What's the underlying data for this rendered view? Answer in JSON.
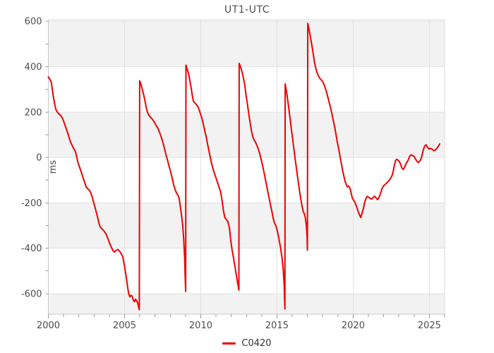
{
  "chart_data": {
    "type": "line",
    "title": "UT1-UTC",
    "ylabel": "ms",
    "xlim": [
      2000,
      2026
    ],
    "ylim": [
      -691,
      607
    ],
    "x_major_ticks": [
      2000,
      2005,
      2010,
      2015,
      2020,
      2025
    ],
    "x_minor_tick_step": 1,
    "y_label_ticks": [
      600,
      400,
      200,
      0,
      -200,
      -400,
      -600
    ],
    "y_minor_tick_step": 100,
    "grid": true,
    "split_bands_gray": [
      [
        600,
        400
      ],
      [
        200,
        0
      ],
      [
        -200,
        -400
      ],
      [
        -600,
        -691
      ]
    ],
    "legend": {
      "position": "bottom-center",
      "entries": [
        "C0420"
      ]
    },
    "colors": {
      "series": "#ee0000",
      "band": "#f2f2f2",
      "grid": "#e2e2e2",
      "axis": "#c8c8c8",
      "border": "#dcdcdc",
      "tick": "#999999",
      "label": "#4d4d4d",
      "title": "#4d4d4d",
      "legend_text": "#333333"
    },
    "series": [
      {
        "name": "C0420",
        "points": [
          [
            2000.0,
            355
          ],
          [
            2000.1,
            345
          ],
          [
            2000.2,
            330
          ],
          [
            2000.26,
            300
          ],
          [
            2000.34,
            264
          ],
          [
            2000.42,
            233
          ],
          [
            2000.49,
            212
          ],
          [
            2000.57,
            202
          ],
          [
            2000.68,
            193
          ],
          [
            2000.8,
            186
          ],
          [
            2000.93,
            172
          ],
          [
            2001.03,
            155
          ],
          [
            2001.14,
            134
          ],
          [
            2001.27,
            108
          ],
          [
            2001.39,
            82
          ],
          [
            2001.47,
            66
          ],
          [
            2001.54,
            56
          ],
          [
            2001.65,
            41
          ],
          [
            2001.77,
            27
          ],
          [
            2001.86,
            3
          ],
          [
            2001.94,
            -22
          ],
          [
            2002.1,
            -53
          ],
          [
            2002.25,
            -84
          ],
          [
            2002.41,
            -115
          ],
          [
            2002.49,
            -131
          ],
          [
            2002.56,
            -136
          ],
          [
            2002.72,
            -147
          ],
          [
            2002.79,
            -157
          ],
          [
            2002.87,
            -172
          ],
          [
            2003.02,
            -209
          ],
          [
            2003.18,
            -250
          ],
          [
            2003.33,
            -292
          ],
          [
            2003.41,
            -307
          ],
          [
            2003.49,
            -313
          ],
          [
            2003.64,
            -323
          ],
          [
            2003.8,
            -339
          ],
          [
            2003.95,
            -365
          ],
          [
            2004.1,
            -391
          ],
          [
            2004.25,
            -412
          ],
          [
            2004.34,
            -417
          ],
          [
            2004.41,
            -411
          ],
          [
            2004.57,
            -406
          ],
          [
            2004.72,
            -417
          ],
          [
            2004.88,
            -437
          ],
          [
            2005.0,
            -480
          ],
          [
            2005.12,
            -532
          ],
          [
            2005.19,
            -567
          ],
          [
            2005.27,
            -600
          ],
          [
            2005.35,
            -615
          ],
          [
            2005.43,
            -608
          ],
          [
            2005.5,
            -612
          ],
          [
            2005.58,
            -630
          ],
          [
            2005.65,
            -636
          ],
          [
            2005.72,
            -625
          ],
          [
            2005.79,
            -631
          ],
          [
            2005.86,
            -642
          ],
          [
            2005.93,
            -662
          ],
          [
            2005.97,
            -671
          ],
          [
            2005.99,
            338
          ],
          [
            2006.08,
            322
          ],
          [
            2006.17,
            300
          ],
          [
            2006.25,
            278
          ],
          [
            2006.33,
            253
          ],
          [
            2006.42,
            222
          ],
          [
            2006.5,
            200
          ],
          [
            2006.6,
            186
          ],
          [
            2006.7,
            178
          ],
          [
            2006.8,
            170
          ],
          [
            2006.9,
            162
          ],
          [
            2007.0,
            150
          ],
          [
            2007.1,
            138
          ],
          [
            2007.2,
            127
          ],
          [
            2007.3,
            110
          ],
          [
            2007.42,
            88
          ],
          [
            2007.52,
            65
          ],
          [
            2007.62,
            40
          ],
          [
            2007.72,
            12
          ],
          [
            2007.82,
            -12
          ],
          [
            2007.92,
            -38
          ],
          [
            2008.02,
            -62
          ],
          [
            2008.12,
            -90
          ],
          [
            2008.22,
            -120
          ],
          [
            2008.32,
            -142
          ],
          [
            2008.42,
            -158
          ],
          [
            2008.5,
            -166
          ],
          [
            2008.58,
            -180
          ],
          [
            2008.66,
            -215
          ],
          [
            2008.73,
            -250
          ],
          [
            2008.81,
            -297
          ],
          [
            2008.88,
            -360
          ],
          [
            2008.94,
            -440
          ],
          [
            2008.98,
            -530
          ],
          [
            2009.01,
            -591
          ],
          [
            2009.03,
            407
          ],
          [
            2009.13,
            385
          ],
          [
            2009.21,
            368
          ],
          [
            2009.29,
            337
          ],
          [
            2009.37,
            306
          ],
          [
            2009.44,
            274
          ],
          [
            2009.52,
            248
          ],
          [
            2009.6,
            241
          ],
          [
            2009.72,
            233
          ],
          [
            2009.83,
            222
          ],
          [
            2009.91,
            207
          ],
          [
            2009.99,
            191
          ],
          [
            2010.06,
            175
          ],
          [
            2010.14,
            155
          ],
          [
            2010.21,
            134
          ],
          [
            2010.29,
            110
          ],
          [
            2010.37,
            87
          ],
          [
            2010.44,
            61
          ],
          [
            2010.52,
            35
          ],
          [
            2010.6,
            9
          ],
          [
            2010.68,
            -17
          ],
          [
            2010.75,
            -37
          ],
          [
            2010.85,
            -60
          ],
          [
            2010.95,
            -80
          ],
          [
            2011.1,
            -110
          ],
          [
            2011.2,
            -131
          ],
          [
            2011.3,
            -150
          ],
          [
            2011.4,
            -190
          ],
          [
            2011.5,
            -240
          ],
          [
            2011.58,
            -265
          ],
          [
            2011.68,
            -273
          ],
          [
            2011.78,
            -283
          ],
          [
            2011.88,
            -310
          ],
          [
            2011.96,
            -360
          ],
          [
            2012.05,
            -405
          ],
          [
            2012.15,
            -443
          ],
          [
            2012.25,
            -485
          ],
          [
            2012.35,
            -525
          ],
          [
            2012.45,
            -565
          ],
          [
            2012.5,
            -585
          ],
          [
            2012.52,
            415
          ],
          [
            2012.62,
            398
          ],
          [
            2012.72,
            375
          ],
          [
            2012.8,
            350
          ],
          [
            2012.88,
            322
          ],
          [
            2012.97,
            276
          ],
          [
            2013.07,
            230
          ],
          [
            2013.17,
            184
          ],
          [
            2013.27,
            140
          ],
          [
            2013.35,
            110
          ],
          [
            2013.43,
            88
          ],
          [
            2013.53,
            74
          ],
          [
            2013.63,
            62
          ],
          [
            2013.74,
            45
          ],
          [
            2013.85,
            22
          ],
          [
            2013.97,
            -10
          ],
          [
            2014.09,
            -46
          ],
          [
            2014.2,
            -83
          ],
          [
            2014.31,
            -119
          ],
          [
            2014.43,
            -160
          ],
          [
            2014.56,
            -203
          ],
          [
            2014.67,
            -238
          ],
          [
            2014.74,
            -264
          ],
          [
            2014.82,
            -286
          ],
          [
            2014.93,
            -301
          ],
          [
            2015.02,
            -322
          ],
          [
            2015.13,
            -357
          ],
          [
            2015.24,
            -400
          ],
          [
            2015.33,
            -442
          ],
          [
            2015.42,
            -500
          ],
          [
            2015.47,
            -560
          ],
          [
            2015.5,
            -620
          ],
          [
            2015.52,
            -668
          ],
          [
            2015.54,
            324
          ],
          [
            2015.62,
            295
          ],
          [
            2015.7,
            255
          ],
          [
            2015.78,
            215
          ],
          [
            2015.86,
            172
          ],
          [
            2015.94,
            128
          ],
          [
            2016.02,
            86
          ],
          [
            2016.1,
            44
          ],
          [
            2016.18,
            2
          ],
          [
            2016.26,
            -40
          ],
          [
            2016.34,
            -80
          ],
          [
            2016.42,
            -118
          ],
          [
            2016.5,
            -155
          ],
          [
            2016.58,
            -190
          ],
          [
            2016.65,
            -216
          ],
          [
            2016.72,
            -238
          ],
          [
            2016.8,
            -249
          ],
          [
            2016.87,
            -268
          ],
          [
            2016.93,
            -300
          ],
          [
            2016.98,
            -355
          ],
          [
            2017.0,
            -409
          ],
          [
            2017.02,
            591
          ],
          [
            2017.1,
            568
          ],
          [
            2017.17,
            540
          ],
          [
            2017.24,
            515
          ],
          [
            2017.31,
            487
          ],
          [
            2017.38,
            458
          ],
          [
            2017.45,
            424
          ],
          [
            2017.52,
            400
          ],
          [
            2017.6,
            380
          ],
          [
            2017.7,
            362
          ],
          [
            2017.8,
            350
          ],
          [
            2017.9,
            342
          ],
          [
            2018.0,
            334
          ],
          [
            2018.1,
            320
          ],
          [
            2018.2,
            300
          ],
          [
            2018.3,
            276
          ],
          [
            2018.4,
            250
          ],
          [
            2018.5,
            224
          ],
          [
            2018.58,
            200
          ],
          [
            2018.65,
            178
          ],
          [
            2018.73,
            152
          ],
          [
            2018.8,
            130
          ],
          [
            2018.88,
            100
          ],
          [
            2018.95,
            72
          ],
          [
            2019.03,
            45
          ],
          [
            2019.1,
            20
          ],
          [
            2019.17,
            -8
          ],
          [
            2019.25,
            -35
          ],
          [
            2019.32,
            -60
          ],
          [
            2019.4,
            -86
          ],
          [
            2019.47,
            -105
          ],
          [
            2019.55,
            -120
          ],
          [
            2019.62,
            -130
          ],
          [
            2019.7,
            -126
          ],
          [
            2019.78,
            -133
          ],
          [
            2019.86,
            -155
          ],
          [
            2019.94,
            -178
          ],
          [
            2020.02,
            -188
          ],
          [
            2020.12,
            -198
          ],
          [
            2020.22,
            -216
          ],
          [
            2020.32,
            -236
          ],
          [
            2020.42,
            -254
          ],
          [
            2020.5,
            -265
          ],
          [
            2020.58,
            -248
          ],
          [
            2020.66,
            -228
          ],
          [
            2020.75,
            -200
          ],
          [
            2020.83,
            -183
          ],
          [
            2020.92,
            -172
          ],
          [
            2021.0,
            -175
          ],
          [
            2021.1,
            -180
          ],
          [
            2021.2,
            -184
          ],
          [
            2021.3,
            -177
          ],
          [
            2021.4,
            -171
          ],
          [
            2021.5,
            -178
          ],
          [
            2021.6,
            -186
          ],
          [
            2021.7,
            -176
          ],
          [
            2021.8,
            -158
          ],
          [
            2021.88,
            -140
          ],
          [
            2021.96,
            -128
          ],
          [
            2022.06,
            -121
          ],
          [
            2022.16,
            -115
          ],
          [
            2022.26,
            -109
          ],
          [
            2022.36,
            -101
          ],
          [
            2022.46,
            -92
          ],
          [
            2022.55,
            -80
          ],
          [
            2022.62,
            -64
          ],
          [
            2022.7,
            -37
          ],
          [
            2022.78,
            -14
          ],
          [
            2022.86,
            -8
          ],
          [
            2022.95,
            -12
          ],
          [
            2023.03,
            -18
          ],
          [
            2023.1,
            -28
          ],
          [
            2023.2,
            -47
          ],
          [
            2023.3,
            -53
          ],
          [
            2023.4,
            -38
          ],
          [
            2023.5,
            -24
          ],
          [
            2023.6,
            -13
          ],
          [
            2023.7,
            4
          ],
          [
            2023.8,
            12
          ],
          [
            2023.9,
            8
          ],
          [
            2024.0,
            5
          ],
          [
            2024.1,
            -8
          ],
          [
            2024.2,
            -18
          ],
          [
            2024.28,
            -22
          ],
          [
            2024.38,
            -16
          ],
          [
            2024.48,
            -2
          ],
          [
            2024.58,
            27
          ],
          [
            2024.68,
            49
          ],
          [
            2024.78,
            56
          ],
          [
            2024.88,
            45
          ],
          [
            2024.98,
            37
          ],
          [
            2025.08,
            40
          ],
          [
            2025.18,
            36
          ],
          [
            2025.28,
            30
          ],
          [
            2025.38,
            32
          ],
          [
            2025.48,
            40
          ],
          [
            2025.58,
            48
          ],
          [
            2025.68,
            60
          ]
        ]
      }
    ]
  }
}
